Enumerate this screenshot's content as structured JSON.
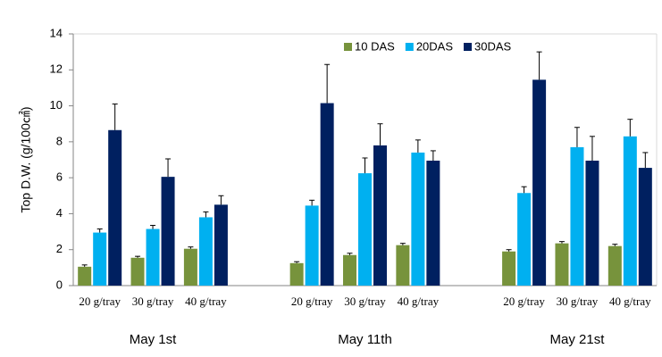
{
  "chart_data": {
    "type": "bar",
    "y_label": "Top D.W.  (g/100㎠)",
    "categories": [
      "20 g/tray",
      "30 g/tray",
      "40 g/tray",
      null,
      "20 g/tray",
      "30 g/tray",
      "40 g/tray",
      null,
      "20 g/tray",
      "30 g/tray",
      "40 g/tray"
    ],
    "group_labels": [
      "May 1st",
      "May 11th",
      "May 21st"
    ],
    "series": [
      {
        "name": "10 DAS",
        "color": "#77933c",
        "values": [
          1.05,
          1.55,
          2.05,
          null,
          1.25,
          1.7,
          2.25,
          null,
          1.9,
          2.35,
          2.2
        ],
        "error": [
          0.1,
          0.08,
          0.1,
          null,
          0.08,
          0.1,
          0.1,
          null,
          0.1,
          0.1,
          0.1
        ]
      },
      {
        "name": "20DAS",
        "color": "#00b0f0",
        "values": [
          2.95,
          3.15,
          3.8,
          null,
          4.45,
          6.25,
          7.4,
          null,
          5.15,
          7.7,
          8.3
        ],
        "error": [
          0.2,
          0.2,
          0.3,
          null,
          0.3,
          0.85,
          0.7,
          null,
          0.35,
          1.1,
          0.95
        ]
      },
      {
        "name": "30DAS",
        "color": "#002060",
        "values": [
          8.65,
          6.05,
          4.5,
          null,
          10.15,
          7.8,
          6.95,
          null,
          11.45,
          6.95,
          6.55
        ],
        "error": [
          1.45,
          1.0,
          0.5,
          null,
          2.15,
          1.2,
          0.55,
          null,
          1.55,
          1.35,
          0.85
        ]
      }
    ],
    "ylim": [
      0,
      14
    ],
    "yticks": [
      0,
      2,
      4,
      6,
      8,
      10,
      12,
      14
    ],
    "grid": false,
    "legend": "top"
  }
}
